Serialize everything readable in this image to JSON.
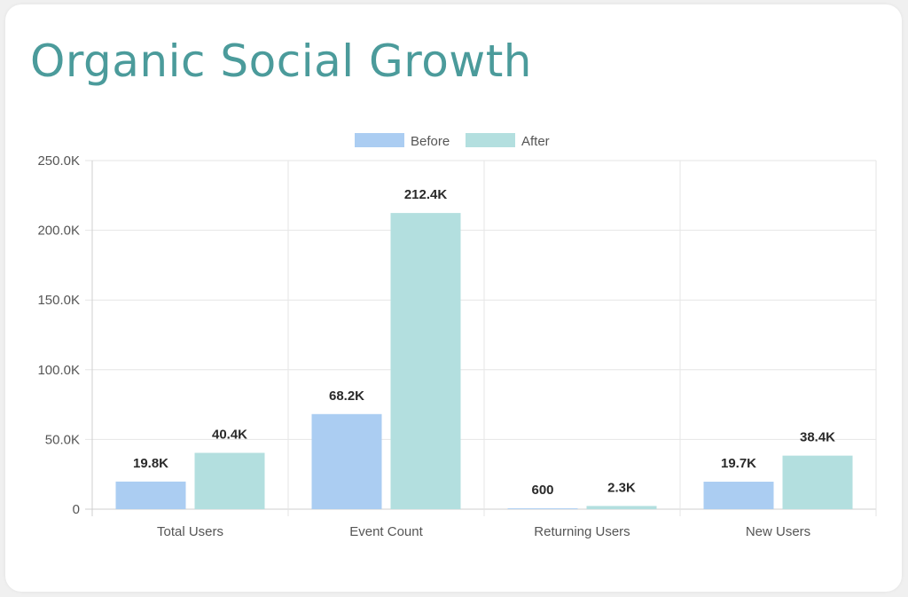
{
  "title": "Organic Social Growth",
  "colors": {
    "title": "#4b9b9b",
    "before": "#abcdf2",
    "after": "#b3dfdf",
    "grid": "#e6e6e6",
    "axis": "#cfcfcf"
  },
  "chart_data": {
    "type": "bar",
    "categories": [
      "Total Users",
      "Event Count",
      "Returning Users",
      "New Users"
    ],
    "series": [
      {
        "name": "Before",
        "values": [
          19800,
          68200,
          600,
          19700
        ],
        "labels": [
          "19.8K",
          "68.2K",
          "600",
          "19.7K"
        ]
      },
      {
        "name": "After",
        "values": [
          40400,
          212400,
          2300,
          38400
        ],
        "labels": [
          "40.4K",
          "212.4K",
          "2.3K",
          "38.4K"
        ]
      }
    ],
    "y_ticks": [
      0,
      50000,
      100000,
      150000,
      200000,
      250000
    ],
    "y_tick_labels": [
      "0",
      "50.0K",
      "100.0K",
      "150.0K",
      "200.0K",
      "250.0K"
    ],
    "ylim": [
      0,
      250000
    ],
    "grid": true,
    "legend_position": "top-center"
  }
}
